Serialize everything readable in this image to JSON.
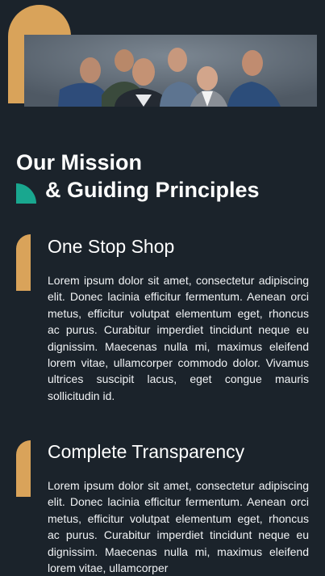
{
  "hero": {
    "image_alt": "Leadership team photo"
  },
  "mission": {
    "line1": "Our Mission",
    "line2": "& Guiding Principles"
  },
  "principles": [
    {
      "title": "One Stop Shop",
      "body": "Lorem ipsum dolor sit amet, consectetur adipiscing elit. Donec lacinia efficitur fermentum. Aenean orci metus, efficitur volutpat elementum eget, rhoncus ac purus. Curabitur imperdiet tincidunt neque eu dignissim. Maecenas nulla mi, maximus eleifend lorem vitae, ullamcorper commodo dolor. Vivamus ultrices suscipit lacus, eget congue mauris sollicitudin id."
    },
    {
      "title": "Complete Transparency",
      "body": "Lorem ipsum dolor sit amet, consectetur adipiscing elit. Donec lacinia efficitur fermentum. Aenean orci metus, efficitur volutpat elementum eget, rhoncus ac purus. Curabitur imperdiet tincidunt neque eu dignissim. Maecenas nulla mi, maximus eleifend lorem vitae, ullamcorper"
    }
  ],
  "colors": {
    "background": "#1b232b",
    "accent_gold": "#d9a35a",
    "accent_teal": "#19a78f"
  }
}
